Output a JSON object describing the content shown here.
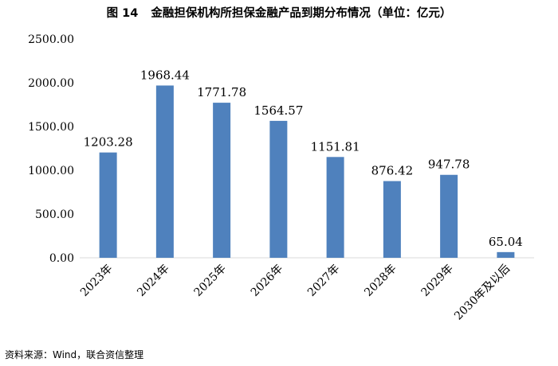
{
  "figure_label": "图 14",
  "title": "金融担保机构所担保金融产品到期分布情况（单位：亿元）",
  "source": "资料来源：Wind，联合资信整理",
  "colors": {
    "bar": "#4f81bd",
    "axis": "#d9d9d9",
    "text": "#000000"
  },
  "chart_data": {
    "type": "bar",
    "title": "金融担保机构所担保金融产品到期分布情况（单位：亿元）",
    "categories": [
      "2023年",
      "2024年",
      "2025年",
      "2026年",
      "2027年",
      "2028年",
      "2029年",
      "2030年及以后"
    ],
    "values": [
      1203.28,
      1968.44,
      1771.78,
      1564.57,
      1151.81,
      876.42,
      947.78,
      65.04
    ],
    "value_labels": [
      "1203.28",
      "1968.44",
      "1771.78",
      "1564.57",
      "1151.81",
      "876.42",
      "947.78",
      "65.04"
    ],
    "yticks": [
      "0.00",
      "500.00",
      "1000.00",
      "1500.00",
      "2000.00",
      "2500.00"
    ],
    "ylim": [
      0,
      2500
    ],
    "xlabel": "",
    "ylabel": "",
    "grid": false,
    "legend": "none"
  }
}
